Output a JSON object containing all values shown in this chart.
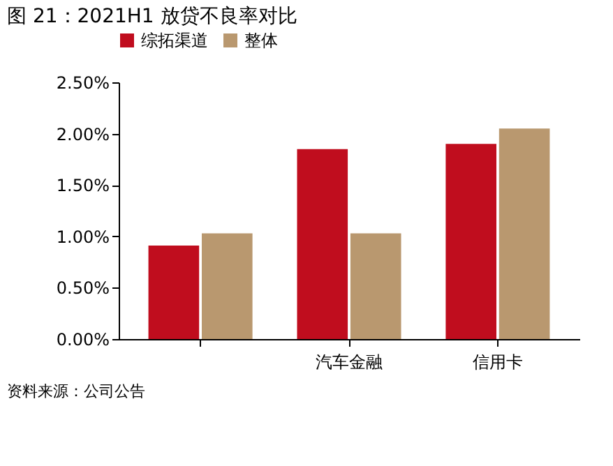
{
  "chart_data": {
    "type": "bar",
    "title": "图 21：2021H1 放贷不良率对比",
    "categories": [
      null,
      "汽车金融",
      "信用卡"
    ],
    "series": [
      {
        "name": "综拓渠道",
        "color": "#c00d1e",
        "values": [
          0.91,
          1.85,
          1.9
        ]
      },
      {
        "name": "整体",
        "color": "#b9986f",
        "values": [
          1.03,
          1.03,
          2.05
        ]
      }
    ],
    "ylim": [
      0,
      2.5
    ],
    "yticks": [
      {
        "value": 0,
        "label": "0.00%"
      },
      {
        "value": 0.5,
        "label": "0.50%"
      },
      {
        "value": 1,
        "label": "1.00%"
      },
      {
        "value": 1.5,
        "label": "1.50%"
      },
      {
        "value": 2,
        "label": "2.00%"
      },
      {
        "value": 2.5,
        "label": "2.50%"
      }
    ],
    "grid": false,
    "legend": "top",
    "annotations": [
      "资料来源：公司公告"
    ]
  }
}
